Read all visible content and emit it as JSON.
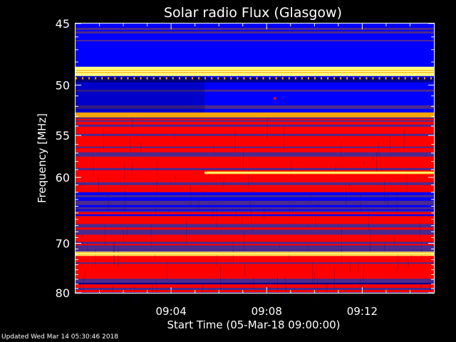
{
  "footer": {
    "updated": "Updated Wed Mar 14 05:30:46 2018"
  },
  "chart_data": {
    "type": "heatmap",
    "title": "Solar radio Flux (Glasgow)",
    "xlabel": "Start Time (05-Mar-18 09:00:00)",
    "ylabel": "Frequency [MHz]",
    "xlim_minutes": [
      0,
      15
    ],
    "ylim": [
      45,
      80
    ],
    "y_scale": "reciprocal",
    "x_ticks": [
      {
        "label": "09:04",
        "value": 4
      },
      {
        "label": "09:08",
        "value": 8
      },
      {
        "label": "09:12",
        "value": 12
      }
    ],
    "y_ticks": [
      45,
      50,
      55,
      60,
      70,
      80
    ],
    "colormap": [
      "#00008b",
      "#0000ff",
      "#4b2a8f",
      "#ff0000",
      "#ffa500",
      "#ffff80"
    ],
    "bands": [
      {
        "from": 45,
        "to": 48.4,
        "level": "blue"
      },
      {
        "from": 48.4,
        "to": 49.2,
        "level": "hot"
      },
      {
        "from": 49.2,
        "to": 52.6,
        "level": "blue"
      },
      {
        "from": 52.6,
        "to": 53.1,
        "level": "warm"
      },
      {
        "from": 53.1,
        "to": 61.5,
        "level": "red"
      },
      {
        "from": 61.5,
        "to": 65.5,
        "level": "mixed"
      },
      {
        "from": 65.5,
        "to": 71.5,
        "level": "red-purple"
      },
      {
        "from": 71.5,
        "to": 72.3,
        "level": "hot"
      },
      {
        "from": 72.3,
        "to": 77,
        "level": "red"
      },
      {
        "from": 77,
        "to": 80,
        "level": "purple"
      }
    ],
    "lines": [
      {
        "freq": 48.8,
        "start_min": 0,
        "end_min": 15
      },
      {
        "freq": 59.4,
        "start_min": 5.4,
        "end_min": 15
      },
      {
        "freq": 71.9,
        "start_min": 0,
        "end_min": 15
      }
    ],
    "change_at_min": 5.4
  }
}
